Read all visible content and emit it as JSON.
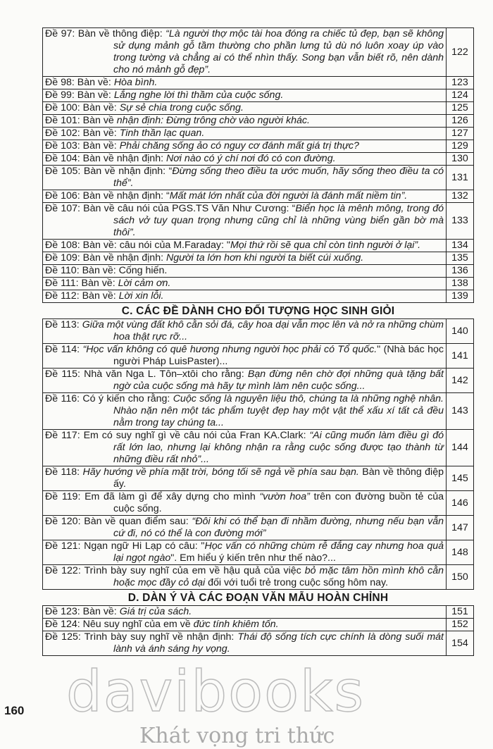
{
  "sections": [
    {
      "heading": "",
      "entries": [
        {
          "label": "Đề 97: ",
          "parts": [
            {
              "t": "Bàn về thông điệp: "
            },
            {
              "t": "“Là người thợ mộc tài hoa đóng ra chiếc tủ đẹp, bạn sẽ không sử dụng mảnh gỗ tầm thường cho phần lưng tủ dù nó luôn xoay úp vào trong tường và chẳng ai có thể nhìn thấy. Song bạn vẫn biết rõ, nên dành cho nó mảnh gỗ đẹp”.",
              "i": true
            }
          ],
          "page": "122"
        },
        {
          "label": "Đề 98: ",
          "parts": [
            {
              "t": "Bàn về: "
            },
            {
              "t": "Hòa bình.",
              "i": true
            }
          ],
          "page": "123"
        },
        {
          "label": "Đề 99: ",
          "parts": [
            {
              "t": "Bàn về: "
            },
            {
              "t": "Lắng nghe lời thì thầm của cuộc sống.",
              "i": true
            }
          ],
          "page": "124"
        },
        {
          "label": "Đề 100: ",
          "parts": [
            {
              "t": "Bàn về: "
            },
            {
              "t": "Sự sẻ chia trong cuộc sống.",
              "i": true
            }
          ],
          "page": "125"
        },
        {
          "label": "Đề 101: ",
          "parts": [
            {
              "t": "Bàn về "
            },
            {
              "t": "nhận định: Đừng trông chờ vào người khác.",
              "i": true
            }
          ],
          "page": "126"
        },
        {
          "label": "Đề 102: ",
          "parts": [
            {
              "t": "Bàn về: "
            },
            {
              "t": "Tinh thần lạc quan.",
              "i": true
            }
          ],
          "page": "127"
        },
        {
          "label": "Đề 103: ",
          "parts": [
            {
              "t": "Bàn về: "
            },
            {
              "t": "Phải chăng sống ảo có nguy cơ đánh mất giá trị thực?",
              "i": true
            }
          ],
          "page": "129"
        },
        {
          "label": "Đề 104: ",
          "parts": [
            {
              "t": "Bàn về nhận định: "
            },
            {
              "t": "Nơi nào có ý chí nơi đó có con đường.",
              "i": true
            }
          ],
          "page": "130"
        },
        {
          "label": "Đề 105: ",
          "parts": [
            {
              "t": "Bàn về nhận định: “"
            },
            {
              "t": "Đừng sống theo điều ta ước muốn, hãy sống theo điều ta có thể”.",
              "i": true
            }
          ],
          "page": "131"
        },
        {
          "label": "Đề 106: ",
          "parts": [
            {
              "t": "Bàn về nhận định: “"
            },
            {
              "t": "Mất mát lớn nhất của đời người là đánh mất niềm tin”.",
              "i": true
            }
          ],
          "page": "132"
        },
        {
          "label": "Đề 107: ",
          "parts": [
            {
              "t": "Bàn về câu nói của PGS.TS Văn Như Cương: “"
            },
            {
              "t": "Biển học là mênh mông, trong đó sách vở tuy quan trọng nhưng cũng chỉ là những vùng biển gần bờ mà thôi”.",
              "i": true
            }
          ],
          "page": "133"
        },
        {
          "label": "Đề 108: ",
          "parts": [
            {
              "t": "Bàn về: câu nói của M.Faraday: \""
            },
            {
              "t": "Mọi thứ rồi sẽ qua chỉ còn tình người ở lại”.",
              "i": true
            }
          ],
          "page": "134"
        },
        {
          "label": "Đề 109: ",
          "parts": [
            {
              "t": "Bàn về nhận định: "
            },
            {
              "t": "Người ta lớn hơn khi người ta biết cúi xuống.",
              "i": true
            }
          ],
          "page": "135"
        },
        {
          "label": "Đề 110: ",
          "parts": [
            {
              "t": "Bàn về: Cống hiến."
            }
          ],
          "page": "136"
        },
        {
          "label": "Đề 111: ",
          "parts": [
            {
              "t": "Bàn về: "
            },
            {
              "t": "Lời cảm ơn.",
              "i": true
            }
          ],
          "page": "138"
        },
        {
          "label": "Đề 112: ",
          "parts": [
            {
              "t": "Bàn về: "
            },
            {
              "t": "Lời xin lỗi.",
              "i": true
            }
          ],
          "page": "139"
        }
      ]
    },
    {
      "heading": "C. CÁC ĐỀ DÀNH CHO ĐỐI TƯỢNG HỌC SINH GIỎI",
      "entries": [
        {
          "label": "Đề 113: ",
          "parts": [
            {
              "t": "Giữa một vùng đất khô cằn sỏi đá, cây hoa dại vẫn mọc lên và nở ra những chùm hoa thật rực rỡ...",
              "i": true
            }
          ],
          "page": "140"
        },
        {
          "label": "Đề 114: ",
          "parts": [
            {
              "t": "“Học vấn không có quê hương nhưng người học phải có Tổ quốc.",
              "i": true
            },
            {
              "t": "\" (Nhà bác học người Pháp LuisPaster)..."
            }
          ],
          "page": "141"
        },
        {
          "label": "Đề 115: ",
          "parts": [
            {
              "t": "Nhà văn Nga L. Tôn–xtôi cho rằng: "
            },
            {
              "t": "Bạn đừng nên chờ đợi những quà tặng bất ngờ của cuộc sống mà hãy tự mình làm nên cuộc sống...",
              "i": true
            }
          ],
          "page": "142"
        },
        {
          "label": "Đề 116: ",
          "parts": [
            {
              "t": "Có ý kiến cho rằng: "
            },
            {
              "t": "Cuộc sống là nguyên liệu thô, chúng ta là những nghệ nhân. Nhào nặn nên một tác phẩm tuyệt đẹp hay một vật thể xấu xí tất cả đều nằm trong tay chúng ta...",
              "i": true
            }
          ],
          "page": "143"
        },
        {
          "label": "Đề 117: ",
          "parts": [
            {
              "t": "Em có suy nghĩ gì về câu nói của Fran KA.Clark: "
            },
            {
              "t": "“Ai cũng muốn làm điều gì đó rất lớn lao, nhưng lại không nhận ra rằng cuộc sống được tạo thành từ những điều rất nhỏ”...",
              "i": true
            }
          ],
          "page": "144"
        },
        {
          "label": "Đề 118: ",
          "parts": [
            {
              "t": "Hãy hướng về phía mặt trời, bóng tối sẽ ngả về phía sau bạn.",
              "i": true
            },
            {
              "t": " Bàn về thông điệp ấy."
            }
          ],
          "page": "145"
        },
        {
          "label": "Đề 119: ",
          "parts": [
            {
              "t": "Em đã làm gì để xây dựng cho mình "
            },
            {
              "t": "“vườn hoa”",
              "i": true
            },
            {
              "t": " trên con đường buồn tẻ của cuộc sống."
            }
          ],
          "page": "146"
        },
        {
          "label": "Đề 120: ",
          "parts": [
            {
              "t": "Bàn về quan điểm sau: "
            },
            {
              "t": "“Đôi khi có thể bạn đi nhầm đường, nhưng nếu bạn vẫn cứ đi, nó có thể là con đường mới”",
              "i": true
            }
          ],
          "page": "147"
        },
        {
          "label": "Đề 121: ",
          "parts": [
            {
              "t": "Ngạn ngữ Hi Lạp có câu: \""
            },
            {
              "t": "Học vấn có những chùm rễ đắng cay nhưng hoa quả lại ngọt ngào",
              "i": true
            },
            {
              "t": "\". Em hiểu ý kiến trên như thế nào?..."
            }
          ],
          "page": "148"
        },
        {
          "label": "Đề 122: ",
          "parts": [
            {
              "t": "Trình bày suy nghĩ của em về hậu quả của việc "
            },
            {
              "t": "bỏ mặc tâm hồn mình khô cằn hoặc mọc đầy cỏ dại",
              "i": true
            },
            {
              "t": " đối với tuổi trẻ trong cuộc sống hôm nay."
            }
          ],
          "page": "150"
        }
      ]
    },
    {
      "heading": "D. DÀN Ý VÀ CÁC ĐOẠN VĂN MẪU HOÀN CHỈNH",
      "entries": [
        {
          "label": "Đề 123: ",
          "parts": [
            {
              "t": "Bàn về: "
            },
            {
              "t": "Giá trị của sách.",
              "i": true
            }
          ],
          "page": "151"
        },
        {
          "label": "Đề 124: ",
          "parts": [
            {
              "t": "Nêu suy nghĩ của em về "
            },
            {
              "t": "đức tính khiêm tốn.",
              "i": true
            }
          ],
          "page": "152"
        },
        {
          "label": "Đề 125: ",
          "parts": [
            {
              "t": "Trình bày suy nghĩ về nhận định: "
            },
            {
              "t": "Thái độ sống tích cực chính là dòng suối mát lành và ánh sáng hy vọng.",
              "i": true
            }
          ],
          "page": "154"
        }
      ]
    }
  ],
  "page_number": "160",
  "watermark": {
    "brand": "davibooks",
    "slogan": "Khát vọng tri thức"
  }
}
